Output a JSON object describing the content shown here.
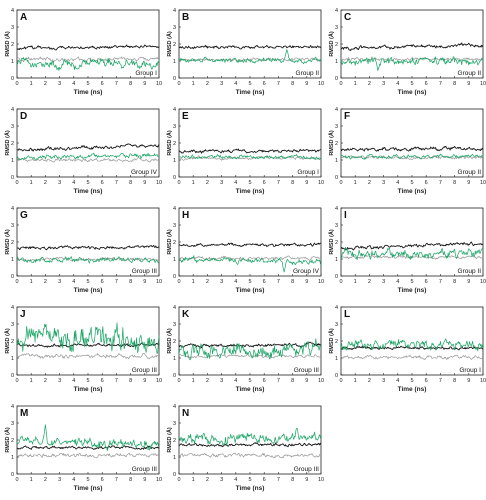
{
  "figure": {
    "colors": {
      "black": "#1a1a1a",
      "green": "#19a463",
      "gray": "#9a9a9a",
      "axis": "#222222"
    }
  },
  "chart_data": [
    {
      "letter": "A",
      "type": "line",
      "group_label": "Group I",
      "xlabel": "Time (ns)",
      "ylabel": "RMSD (Å)",
      "xlim": [
        0,
        10
      ],
      "ylim": [
        0,
        4
      ],
      "xticks": [
        0,
        1,
        2,
        3,
        4,
        5,
        6,
        7,
        8,
        9,
        10
      ],
      "yticks": [
        0,
        1,
        2,
        3,
        4
      ],
      "series": [
        {
          "color": "black",
          "base": 1.75,
          "noise": 0.06,
          "trend": 0.1,
          "spikes": []
        },
        {
          "color": "gray",
          "base": 1.1,
          "noise": 0.08,
          "trend": 0.0,
          "spikes": []
        },
        {
          "color": "green",
          "base": 0.85,
          "noise": 0.18,
          "trend": 0.0,
          "spikes": []
        }
      ]
    },
    {
      "letter": "B",
      "type": "line",
      "group_label": "Group II",
      "xlabel": "Time (ns)",
      "ylabel": "RMSD (Å)",
      "xlim": [
        0,
        10
      ],
      "ylim": [
        0,
        4
      ],
      "xticks": [
        0,
        1,
        2,
        3,
        4,
        5,
        6,
        7,
        8,
        9,
        10
      ],
      "yticks": [
        0,
        1,
        2,
        3,
        4
      ],
      "series": [
        {
          "color": "black",
          "base": 1.8,
          "noise": 0.06,
          "trend": 0.05,
          "spikes": []
        },
        {
          "color": "gray",
          "base": 1.1,
          "noise": 0.06,
          "trend": 0.0,
          "spikes": []
        },
        {
          "color": "green",
          "base": 1.05,
          "noise": 0.1,
          "trend": 0.0,
          "spikes": [
            [
              7.6,
              1.7
            ]
          ]
        }
      ]
    },
    {
      "letter": "C",
      "type": "line",
      "group_label": "Group II",
      "xlabel": "Time (ns)",
      "ylabel": "RMSD (Å)",
      "xlim": [
        0,
        10
      ],
      "ylim": [
        0,
        4
      ],
      "xticks": [
        0,
        1,
        2,
        3,
        4,
        5,
        6,
        7,
        8,
        9,
        10
      ],
      "yticks": [
        0,
        1,
        2,
        3,
        4
      ],
      "series": [
        {
          "color": "black",
          "base": 1.75,
          "noise": 0.07,
          "trend": 0.2,
          "spikes": []
        },
        {
          "color": "gray",
          "base": 1.1,
          "noise": 0.06,
          "trend": 0.0,
          "spikes": []
        },
        {
          "color": "green",
          "base": 1.0,
          "noise": 0.16,
          "trend": 0.0,
          "spikes": [
            [
              2.6,
              0.4
            ]
          ]
        }
      ]
    },
    {
      "letter": "D",
      "type": "line",
      "group_label": "Group IV",
      "xlabel": "Time (ns)",
      "ylabel": "RMSD (Å)",
      "xlim": [
        0,
        10
      ],
      "ylim": [
        0,
        4
      ],
      "xticks": [
        0,
        1,
        2,
        3,
        4,
        5,
        6,
        7,
        8,
        9,
        10
      ],
      "yticks": [
        0,
        1,
        2,
        3,
        4
      ],
      "series": [
        {
          "color": "black",
          "base": 1.6,
          "noise": 0.07,
          "trend": 0.25,
          "spikes": []
        },
        {
          "color": "gray",
          "base": 1.0,
          "noise": 0.07,
          "trend": 0.0,
          "spikes": []
        },
        {
          "color": "green",
          "base": 1.2,
          "noise": 0.1,
          "trend": 0.05,
          "spikes": []
        }
      ]
    },
    {
      "letter": "E",
      "type": "line",
      "group_label": "Group I",
      "xlabel": "Time (ns)",
      "ylabel": "RMSD (Å)",
      "xlim": [
        0,
        10
      ],
      "ylim": [
        0,
        4
      ],
      "xticks": [
        0,
        1,
        2,
        3,
        4,
        5,
        6,
        7,
        8,
        9,
        10
      ],
      "yticks": [
        0,
        1,
        2,
        3,
        4
      ],
      "series": [
        {
          "color": "black",
          "base": 1.5,
          "noise": 0.06,
          "trend": 0.05,
          "spikes": []
        },
        {
          "color": "gray",
          "base": 1.1,
          "noise": 0.06,
          "trend": 0.0,
          "spikes": []
        },
        {
          "color": "green",
          "base": 1.15,
          "noise": 0.08,
          "trend": 0.0,
          "spikes": []
        }
      ]
    },
    {
      "letter": "F",
      "type": "line",
      "group_label": "Group II",
      "xlabel": "Time (ns)",
      "ylabel": "RMSD (Å)",
      "xlim": [
        0,
        10
      ],
      "ylim": [
        0,
        4
      ],
      "xticks": [
        0,
        1,
        2,
        3,
        4,
        5,
        6,
        7,
        8,
        9,
        10
      ],
      "yticks": [
        0,
        1,
        2,
        3,
        4
      ],
      "series": [
        {
          "color": "black",
          "base": 1.6,
          "noise": 0.07,
          "trend": 0.1,
          "spikes": []
        },
        {
          "color": "gray",
          "base": 1.15,
          "noise": 0.06,
          "trend": 0.0,
          "spikes": []
        },
        {
          "color": "green",
          "base": 1.2,
          "noise": 0.08,
          "trend": 0.0,
          "spikes": []
        }
      ]
    },
    {
      "letter": "G",
      "type": "line",
      "group_label": "Group III",
      "xlabel": "Time (ns)",
      "ylabel": "RMSD (Å)",
      "xlim": [
        0,
        10
      ],
      "ylim": [
        0,
        4
      ],
      "xticks": [
        0,
        1,
        2,
        3,
        4,
        5,
        6,
        7,
        8,
        9,
        10
      ],
      "yticks": [
        0,
        1,
        2,
        3,
        4
      ],
      "series": [
        {
          "color": "black",
          "base": 1.65,
          "noise": 0.06,
          "trend": 0.05,
          "spikes": []
        },
        {
          "color": "gray",
          "base": 1.0,
          "noise": 0.06,
          "trend": 0.0,
          "spikes": []
        },
        {
          "color": "green",
          "base": 0.95,
          "noise": 0.1,
          "trend": 0.0,
          "spikes": []
        }
      ]
    },
    {
      "letter": "H",
      "type": "line",
      "group_label": "Group IV",
      "xlabel": "Time (ns)",
      "ylabel": "RMSD (Å)",
      "xlim": [
        0,
        10
      ],
      "ylim": [
        0,
        4
      ],
      "xticks": [
        0,
        1,
        2,
        3,
        4,
        5,
        6,
        7,
        8,
        9,
        10
      ],
      "yticks": [
        0,
        1,
        2,
        3,
        4
      ],
      "series": [
        {
          "color": "black",
          "base": 1.8,
          "noise": 0.06,
          "trend": 0.05,
          "spikes": []
        },
        {
          "color": "gray",
          "base": 1.05,
          "noise": 0.07,
          "trend": 0.0,
          "spikes": []
        },
        {
          "color": "green",
          "base": 1.0,
          "noise": 0.12,
          "trend": -0.2,
          "spikes": [
            [
              7.4,
              0.2
            ]
          ]
        }
      ]
    },
    {
      "letter": "I",
      "type": "line",
      "group_label": "Group II",
      "xlabel": "Time (ns)",
      "ylabel": "RMSD (Å)",
      "xlim": [
        0,
        10
      ],
      "ylim": [
        0,
        4
      ],
      "xticks": [
        0,
        1,
        2,
        3,
        4,
        5,
        6,
        7,
        8,
        9,
        10
      ],
      "yticks": [
        0,
        1,
        2,
        3,
        4
      ],
      "series": [
        {
          "color": "black",
          "base": 1.6,
          "noise": 0.07,
          "trend": 0.3,
          "spikes": []
        },
        {
          "color": "gray",
          "base": 1.1,
          "noise": 0.06,
          "trend": 0.0,
          "spikes": []
        },
        {
          "color": "green",
          "base": 1.3,
          "noise": 0.18,
          "trend": 0.0,
          "spikes": []
        }
      ]
    },
    {
      "letter": "J",
      "type": "line",
      "group_label": "Group III",
      "xlabel": "Time (ns)",
      "ylabel": "RMSD (Å)",
      "xlim": [
        0,
        10
      ],
      "ylim": [
        0,
        4
      ],
      "xticks": [
        0,
        1,
        2,
        3,
        4,
        5,
        6,
        7,
        8,
        9,
        10
      ],
      "yticks": [
        0,
        1,
        2,
        3,
        4
      ],
      "series": [
        {
          "color": "black",
          "base": 1.75,
          "noise": 0.06,
          "trend": 0.0,
          "spikes": []
        },
        {
          "color": "gray",
          "base": 1.1,
          "noise": 0.08,
          "trend": 0.0,
          "spikes": []
        },
        {
          "color": "green",
          "base": 2.1,
          "noise": 0.45,
          "trend": 0.0,
          "spikes": []
        }
      ]
    },
    {
      "letter": "K",
      "type": "line",
      "group_label": "Group III",
      "xlabel": "Time (ns)",
      "ylabel": "RMSD (Å)",
      "xlim": [
        0,
        10
      ],
      "ylim": [
        0,
        4
      ],
      "xticks": [
        0,
        1,
        2,
        3,
        4,
        5,
        6,
        7,
        8,
        9,
        10
      ],
      "yticks": [
        0,
        1,
        2,
        3,
        4
      ],
      "series": [
        {
          "color": "black",
          "base": 1.7,
          "noise": 0.06,
          "trend": 0.1,
          "spikes": []
        },
        {
          "color": "gray",
          "base": 1.1,
          "noise": 0.06,
          "trend": 0.0,
          "spikes": []
        },
        {
          "color": "green",
          "base": 1.5,
          "noise": 0.3,
          "trend": 0.0,
          "spikes": []
        }
      ]
    },
    {
      "letter": "L",
      "type": "line",
      "group_label": "Group I",
      "xlabel": "Time (ns)",
      "ylabel": "RMSD (Å)",
      "xlim": [
        0,
        10
      ],
      "ylim": [
        0,
        4
      ],
      "xticks": [
        0,
        1,
        2,
        3,
        4,
        5,
        6,
        7,
        8,
        9,
        10
      ],
      "yticks": [
        0,
        1,
        2,
        3,
        4
      ],
      "series": [
        {
          "color": "black",
          "base": 1.6,
          "noise": 0.06,
          "trend": 0.0,
          "spikes": []
        },
        {
          "color": "gray",
          "base": 1.05,
          "noise": 0.07,
          "trend": 0.0,
          "spikes": []
        },
        {
          "color": "green",
          "base": 1.75,
          "noise": 0.2,
          "trend": 0.0,
          "spikes": []
        }
      ]
    },
    {
      "letter": "M",
      "type": "line",
      "group_label": "Group III",
      "xlabel": "Time (ns)",
      "ylabel": "RMSD (Å)",
      "xlim": [
        0,
        10
      ],
      "ylim": [
        0,
        4
      ],
      "xticks": [
        0,
        1,
        2,
        3,
        4,
        5,
        6,
        7,
        8,
        9,
        10
      ],
      "yticks": [
        0,
        1,
        2,
        3,
        4
      ],
      "series": [
        {
          "color": "black",
          "base": 1.55,
          "noise": 0.06,
          "trend": 0.0,
          "spikes": []
        },
        {
          "color": "gray",
          "base": 1.1,
          "noise": 0.08,
          "trend": 0.0,
          "spikes": []
        },
        {
          "color": "green",
          "base": 1.9,
          "noise": 0.2,
          "trend": -0.2,
          "spikes": [
            [
              2.0,
              2.9
            ]
          ]
        }
      ]
    },
    {
      "letter": "N",
      "type": "line",
      "group_label": "Group III",
      "xlabel": "Time (ns)",
      "ylabel": "RMSD (Å)",
      "xlim": [
        0,
        10
      ],
      "ylim": [
        0,
        4
      ],
      "xticks": [
        0,
        1,
        2,
        3,
        4,
        5,
        6,
        7,
        8,
        9,
        10
      ],
      "yticks": [
        0,
        1,
        2,
        3,
        4
      ],
      "series": [
        {
          "color": "black",
          "base": 1.7,
          "noise": 0.06,
          "trend": 0.05,
          "spikes": []
        },
        {
          "color": "gray",
          "base": 1.1,
          "noise": 0.07,
          "trend": 0.0,
          "spikes": []
        },
        {
          "color": "green",
          "base": 2.1,
          "noise": 0.2,
          "trend": 0.0,
          "spikes": [
            [
              8.3,
              2.8
            ]
          ]
        }
      ]
    }
  ]
}
